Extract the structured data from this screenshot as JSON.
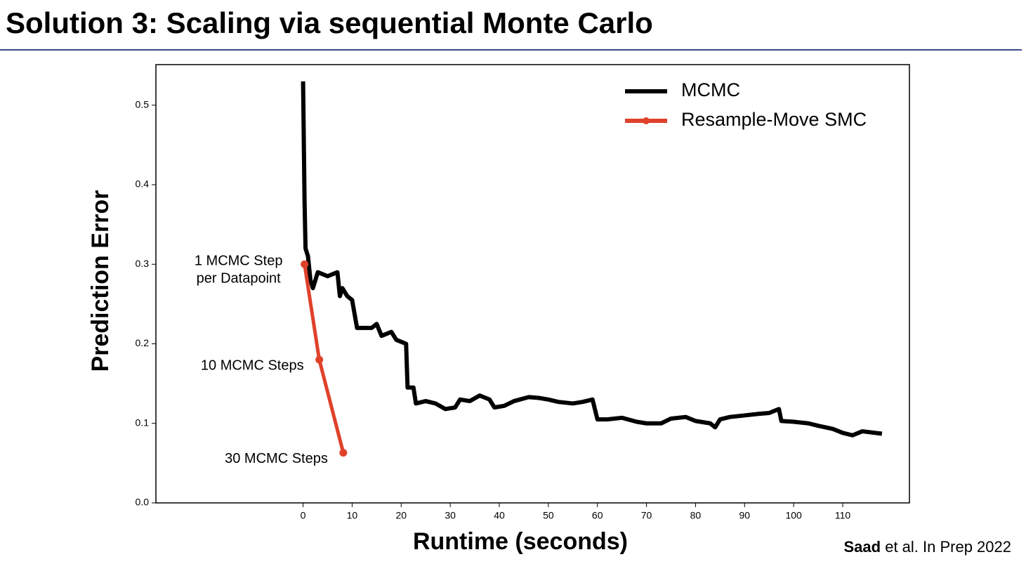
{
  "slide_title": "Solution 3: Scaling via sequential Monte Carlo",
  "citation": {
    "author": "Saad",
    "rest": "et al. In Prep 2022"
  },
  "chart_data": {
    "type": "line",
    "xlabel": "Runtime (seconds)",
    "ylabel": "Prediction Error",
    "xlim": [
      -30,
      123.6
    ],
    "ylim": [
      0,
      0.551
    ],
    "xticks": [
      0,
      10,
      20,
      30,
      40,
      50,
      60,
      70,
      80,
      90,
      100,
      110
    ],
    "yticks": [
      {
        "value": 0,
        "label": "0.0"
      },
      0.1,
      0.2,
      0.3,
      0.4,
      0.5
    ],
    "legend": "upper right",
    "series": [
      {
        "name": "MCMC",
        "color": "#000000",
        "markers": false,
        "x": [
          0,
          0.3,
          0.5,
          1,
          1.5,
          2,
          3,
          5,
          7,
          7.5,
          8,
          9,
          10,
          11,
          14,
          15,
          16,
          18,
          19,
          21,
          21.3,
          22.5,
          23,
          25,
          27,
          29,
          31,
          32,
          34,
          36,
          38,
          39,
          41,
          43,
          46,
          48,
          50,
          52,
          55,
          57,
          59,
          60,
          62,
          65,
          68,
          70,
          73,
          75,
          78,
          80,
          83,
          84,
          85,
          87,
          90,
          93,
          95,
          97,
          97.5,
          100,
          103,
          105,
          108,
          110,
          112,
          114,
          118
        ],
        "values": [
          0.53,
          0.38,
          0.32,
          0.31,
          0.28,
          0.27,
          0.29,
          0.285,
          0.29,
          0.26,
          0.27,
          0.26,
          0.255,
          0.22,
          0.22,
          0.225,
          0.21,
          0.215,
          0.205,
          0.2,
          0.145,
          0.145,
          0.125,
          0.128,
          0.125,
          0.118,
          0.12,
          0.13,
          0.128,
          0.135,
          0.13,
          0.12,
          0.122,
          0.128,
          0.133,
          0.132,
          0.13,
          0.127,
          0.125,
          0.127,
          0.13,
          0.105,
          0.105,
          0.107,
          0.102,
          0.1,
          0.1,
          0.106,
          0.108,
          0.103,
          0.1,
          0.095,
          0.105,
          0.108,
          0.11,
          0.112,
          0.113,
          0.118,
          0.103,
          0.102,
          0.1,
          0.097,
          0.093,
          0.088,
          0.085,
          0.09,
          0.087
        ]
      },
      {
        "name": "Resample-Move SMC",
        "color": "#e0412b",
        "markers": true,
        "x": [
          0.3,
          3.3,
          8.2
        ],
        "values": [
          0.3,
          0.18,
          0.063
        ],
        "point_labels": [
          [
            "1 MCMC Step",
            "per Datapoint"
          ],
          [
            "10 MCMC Steps"
          ],
          [
            "30 MCMC Steps"
          ]
        ]
      }
    ]
  }
}
